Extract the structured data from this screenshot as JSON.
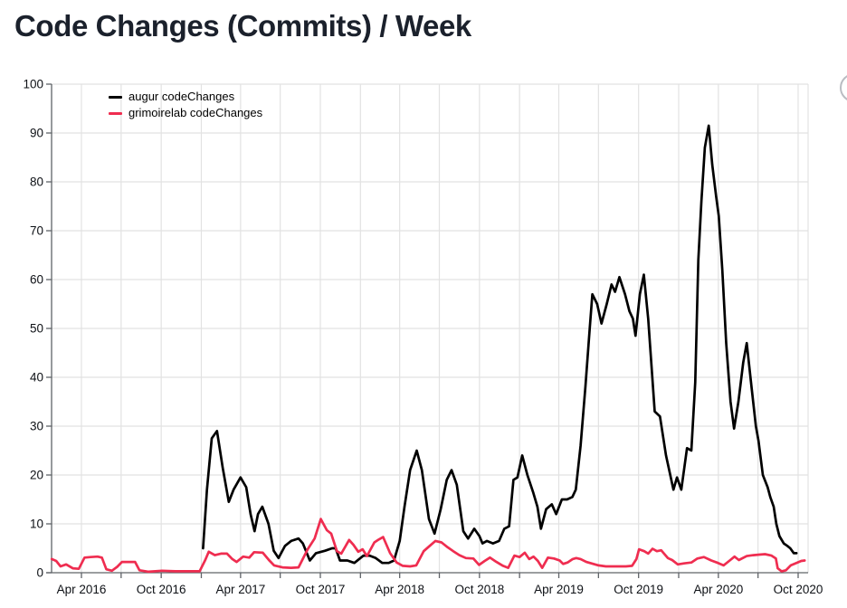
{
  "header": {
    "title": "Code Changes (Commits) / Week"
  },
  "decorations": {
    "top_right_icon": "partial-circle-outline"
  },
  "colors": {
    "background": "#ffffff",
    "gridline": "#e2e2e2",
    "axis": "#5f6368",
    "title_text": "#1b212c",
    "tick_text": "#0e1116"
  },
  "chart_data": {
    "type": "line",
    "title": "Code Changes (Commits) / Week",
    "xlabel": "",
    "ylabel": "",
    "grid": true,
    "legend_position": "top-left-inside",
    "y_axis": {
      "min": 0,
      "max": 100,
      "tick_step": 10,
      "ticks": [
        0,
        10,
        20,
        30,
        40,
        50,
        60,
        70,
        80,
        90,
        100
      ]
    },
    "x_axis": {
      "range_start": "2016-01-23",
      "range_end": "2020-10-24",
      "gridline_interval": "3 months",
      "label_interval": "6 months",
      "gridlines": [
        {
          "date": "2016-04-01",
          "label": "Apr 2016"
        },
        {
          "date": "2016-07-01",
          "label": ""
        },
        {
          "date": "2016-10-01",
          "label": "Oct 2016"
        },
        {
          "date": "2017-01-01",
          "label": ""
        },
        {
          "date": "2017-04-01",
          "label": "Apr 2017"
        },
        {
          "date": "2017-07-01",
          "label": ""
        },
        {
          "date": "2017-10-01",
          "label": "Oct 2017"
        },
        {
          "date": "2018-01-01",
          "label": ""
        },
        {
          "date": "2018-04-01",
          "label": "Apr 2018"
        },
        {
          "date": "2018-07-01",
          "label": ""
        },
        {
          "date": "2018-10-01",
          "label": "Oct 2018"
        },
        {
          "date": "2019-01-01",
          "label": ""
        },
        {
          "date": "2019-04-01",
          "label": "Apr 2019"
        },
        {
          "date": "2019-07-01",
          "label": ""
        },
        {
          "date": "2019-10-01",
          "label": "Oct 2019"
        },
        {
          "date": "2020-01-01",
          "label": ""
        },
        {
          "date": "2020-04-01",
          "label": "Apr 2020"
        },
        {
          "date": "2020-07-01",
          "label": ""
        },
        {
          "date": "2020-10-01",
          "label": "Oct 2020"
        }
      ]
    },
    "series": [
      {
        "name": "augur codeChanges",
        "color": "#000000",
        "points": [
          [
            "2017-01-05",
            5
          ],
          [
            "2017-01-14",
            17
          ],
          [
            "2017-01-25",
            27.5
          ],
          [
            "2017-02-06",
            29
          ],
          [
            "2017-02-19",
            21.5
          ],
          [
            "2017-03-05",
            14.5
          ],
          [
            "2017-03-16",
            17
          ],
          [
            "2017-04-01",
            19.5
          ],
          [
            "2017-04-14",
            17.5
          ],
          [
            "2017-04-24",
            12
          ],
          [
            "2017-05-03",
            8.5
          ],
          [
            "2017-05-11",
            12
          ],
          [
            "2017-05-21",
            13.5
          ],
          [
            "2017-06-04",
            10
          ],
          [
            "2017-06-16",
            4.5
          ],
          [
            "2017-06-27",
            3
          ],
          [
            "2017-07-12",
            5.5
          ],
          [
            "2017-07-26",
            6.5
          ],
          [
            "2017-08-12",
            7
          ],
          [
            "2017-08-22",
            6
          ],
          [
            "2017-09-07",
            2.5
          ],
          [
            "2017-09-21",
            4
          ],
          [
            "2017-10-12",
            4.5
          ],
          [
            "2017-10-28",
            5
          ],
          [
            "2017-11-05",
            5
          ],
          [
            "2017-11-15",
            2.5
          ],
          [
            "2017-12-02",
            2.5
          ],
          [
            "2017-12-18",
            2
          ],
          [
            "2018-01-08",
            3.5
          ],
          [
            "2018-01-22",
            3.5
          ],
          [
            "2018-02-05",
            3
          ],
          [
            "2018-02-20",
            2
          ],
          [
            "2018-03-07",
            2
          ],
          [
            "2018-03-19",
            2.5
          ],
          [
            "2018-04-01",
            6.5
          ],
          [
            "2018-04-12",
            13.5
          ],
          [
            "2018-04-25",
            21
          ],
          [
            "2018-05-10",
            25
          ],
          [
            "2018-05-22",
            21
          ],
          [
            "2018-06-07",
            11
          ],
          [
            "2018-06-20",
            8
          ],
          [
            "2018-07-04",
            13
          ],
          [
            "2018-07-18",
            19
          ],
          [
            "2018-07-29",
            21
          ],
          [
            "2018-08-10",
            18
          ],
          [
            "2018-08-25",
            8.5
          ],
          [
            "2018-09-05",
            7
          ],
          [
            "2018-09-19",
            9
          ],
          [
            "2018-10-01",
            7.5
          ],
          [
            "2018-10-08",
            6
          ],
          [
            "2018-10-18",
            6.5
          ],
          [
            "2018-11-01",
            6
          ],
          [
            "2018-11-15",
            6.5
          ],
          [
            "2018-11-27",
            9
          ],
          [
            "2018-12-08",
            9.5
          ],
          [
            "2018-12-18",
            19
          ],
          [
            "2018-12-27",
            19.5
          ],
          [
            "2019-01-07",
            24
          ],
          [
            "2019-01-19",
            20
          ],
          [
            "2019-02-01",
            16.5
          ],
          [
            "2019-02-11",
            13.5
          ],
          [
            "2019-02-19",
            9
          ],
          [
            "2019-03-03",
            13
          ],
          [
            "2019-03-16",
            14
          ],
          [
            "2019-03-26",
            12
          ],
          [
            "2019-04-08",
            15
          ],
          [
            "2019-04-20",
            15
          ],
          [
            "2019-05-02",
            15.5
          ],
          [
            "2019-05-10",
            17
          ],
          [
            "2019-05-21",
            26
          ],
          [
            "2019-06-01",
            38
          ],
          [
            "2019-06-11",
            50
          ],
          [
            "2019-06-17",
            57
          ],
          [
            "2019-06-28",
            55
          ],
          [
            "2019-07-08",
            51
          ],
          [
            "2019-07-20",
            55
          ],
          [
            "2019-07-31",
            59
          ],
          [
            "2019-08-08",
            57.5
          ],
          [
            "2019-08-18",
            60.5
          ],
          [
            "2019-08-31",
            57
          ],
          [
            "2019-09-10",
            53.5
          ],
          [
            "2019-09-18",
            52
          ],
          [
            "2019-09-24",
            48.5
          ],
          [
            "2019-10-04",
            57
          ],
          [
            "2019-10-13",
            61
          ],
          [
            "2019-10-23",
            52
          ],
          [
            "2019-11-07",
            33
          ],
          [
            "2019-11-19",
            32
          ],
          [
            "2019-12-03",
            24
          ],
          [
            "2019-12-20",
            17
          ],
          [
            "2019-12-28",
            19.5
          ],
          [
            "2020-01-07",
            17
          ],
          [
            "2020-01-20",
            25.5
          ],
          [
            "2020-01-30",
            25
          ],
          [
            "2020-02-08",
            39
          ],
          [
            "2020-02-15",
            64
          ],
          [
            "2020-02-22",
            76
          ],
          [
            "2020-03-01",
            87
          ],
          [
            "2020-03-10",
            91.5
          ],
          [
            "2020-03-18",
            83.5
          ],
          [
            "2020-03-27",
            77
          ],
          [
            "2020-04-02",
            73
          ],
          [
            "2020-04-10",
            62
          ],
          [
            "2020-04-19",
            47
          ],
          [
            "2020-04-29",
            35
          ],
          [
            "2020-05-07",
            29.5
          ],
          [
            "2020-05-17",
            35
          ],
          [
            "2020-05-28",
            43
          ],
          [
            "2020-06-05",
            47
          ],
          [
            "2020-06-16",
            38
          ],
          [
            "2020-06-26",
            30
          ],
          [
            "2020-07-02",
            27
          ],
          [
            "2020-07-12",
            20
          ],
          [
            "2020-07-23",
            17.5
          ],
          [
            "2020-07-29",
            15.5
          ],
          [
            "2020-08-06",
            13.5
          ],
          [
            "2020-08-12",
            10
          ],
          [
            "2020-08-19",
            7.5
          ],
          [
            "2020-08-29",
            6
          ],
          [
            "2020-09-06",
            5.5
          ],
          [
            "2020-09-13",
            5
          ],
          [
            "2020-09-21",
            4
          ],
          [
            "2020-09-27",
            4
          ]
        ]
      },
      {
        "name": "grimoirelab codeChanges",
        "color": "#ef2d50",
        "points": [
          [
            "2016-01-24",
            2.8
          ],
          [
            "2016-02-03",
            2.4
          ],
          [
            "2016-02-13",
            1.3
          ],
          [
            "2016-02-26",
            1.7
          ],
          [
            "2016-03-12",
            0.9
          ],
          [
            "2016-03-26",
            0.8
          ],
          [
            "2016-04-08",
            3.1
          ],
          [
            "2016-04-22",
            3.2
          ],
          [
            "2016-05-08",
            3.3
          ],
          [
            "2016-05-18",
            3.1
          ],
          [
            "2016-05-28",
            0.7
          ],
          [
            "2016-06-10",
            0.4
          ],
          [
            "2016-06-22",
            1.2
          ],
          [
            "2016-07-03",
            2.2
          ],
          [
            "2016-07-19",
            2.2
          ],
          [
            "2016-08-02",
            2.2
          ],
          [
            "2016-08-12",
            0.5
          ],
          [
            "2016-09-02",
            0.2
          ],
          [
            "2016-10-03",
            0.4
          ],
          [
            "2016-11-02",
            0.3
          ],
          [
            "2016-12-03",
            0.3
          ],
          [
            "2016-12-28",
            0.3
          ],
          [
            "2017-01-10",
            2.6
          ],
          [
            "2017-01-18",
            4.3
          ],
          [
            "2017-02-01",
            3.6
          ],
          [
            "2017-02-15",
            3.9
          ],
          [
            "2017-03-01",
            3.9
          ],
          [
            "2017-03-13",
            2.8
          ],
          [
            "2017-03-23",
            2.2
          ],
          [
            "2017-04-07",
            3.3
          ],
          [
            "2017-04-21",
            3.1
          ],
          [
            "2017-05-02",
            4.2
          ],
          [
            "2017-05-22",
            4.1
          ],
          [
            "2017-06-05",
            2.6
          ],
          [
            "2017-06-17",
            1.5
          ],
          [
            "2017-07-06",
            1.1
          ],
          [
            "2017-07-26",
            1
          ],
          [
            "2017-08-12",
            1.1
          ],
          [
            "2017-09-02",
            4.8
          ],
          [
            "2017-09-18",
            7
          ],
          [
            "2017-10-02",
            11
          ],
          [
            "2017-10-16",
            8.7
          ],
          [
            "2017-10-26",
            8
          ],
          [
            "2017-11-08",
            4.4
          ],
          [
            "2017-11-18",
            3.9
          ],
          [
            "2017-12-06",
            6.7
          ],
          [
            "2017-12-16",
            5.7
          ],
          [
            "2017-12-27",
            4.3
          ],
          [
            "2018-01-06",
            4.8
          ],
          [
            "2018-01-16",
            3.4
          ],
          [
            "2018-02-02",
            6.2
          ],
          [
            "2018-02-12",
            6.8
          ],
          [
            "2018-02-22",
            7.3
          ],
          [
            "2018-03-10",
            4
          ],
          [
            "2018-03-25",
            2.1
          ],
          [
            "2018-04-08",
            1.4
          ],
          [
            "2018-04-25",
            1.3
          ],
          [
            "2018-05-09",
            1.5
          ],
          [
            "2018-05-26",
            4.4
          ],
          [
            "2018-06-09",
            5.5
          ],
          [
            "2018-06-22",
            6.5
          ],
          [
            "2018-07-06",
            6.2
          ],
          [
            "2018-07-20",
            5.2
          ],
          [
            "2018-08-02",
            4.4
          ],
          [
            "2018-08-16",
            3.6
          ],
          [
            "2018-08-31",
            3
          ],
          [
            "2018-09-17",
            2.9
          ],
          [
            "2018-09-30",
            1.6
          ],
          [
            "2018-10-13",
            2.4
          ],
          [
            "2018-10-25",
            3.1
          ],
          [
            "2018-11-09",
            2.2
          ],
          [
            "2018-11-24",
            1.4
          ],
          [
            "2018-12-06",
            1
          ],
          [
            "2018-12-20",
            3.5
          ],
          [
            "2019-01-01",
            3.2
          ],
          [
            "2019-01-13",
            4.1
          ],
          [
            "2019-01-23",
            2.8
          ],
          [
            "2019-02-02",
            3.3
          ],
          [
            "2019-02-12",
            2.4
          ],
          [
            "2019-02-22",
            1
          ],
          [
            "2019-03-07",
            3.1
          ],
          [
            "2019-03-21",
            2.9
          ],
          [
            "2019-04-03",
            2.5
          ],
          [
            "2019-04-11",
            1.8
          ],
          [
            "2019-04-21",
            2.1
          ],
          [
            "2019-05-03",
            2.8
          ],
          [
            "2019-05-11",
            3
          ],
          [
            "2019-05-21",
            2.8
          ],
          [
            "2019-06-03",
            2.2
          ],
          [
            "2019-06-15",
            1.9
          ],
          [
            "2019-07-01",
            1.5
          ],
          [
            "2019-07-18",
            1.3
          ],
          [
            "2019-08-12",
            1.3
          ],
          [
            "2019-09-02",
            1.3
          ],
          [
            "2019-09-16",
            1.4
          ],
          [
            "2019-09-26",
            2.8
          ],
          [
            "2019-10-02",
            4.8
          ],
          [
            "2019-10-14",
            4.4
          ],
          [
            "2019-10-23",
            3.9
          ],
          [
            "2019-11-02",
            4.9
          ],
          [
            "2019-11-12",
            4.4
          ],
          [
            "2019-11-22",
            4.6
          ],
          [
            "2019-12-07",
            3
          ],
          [
            "2019-12-17",
            2.6
          ],
          [
            "2019-12-30",
            1.7
          ],
          [
            "2020-01-13",
            1.9
          ],
          [
            "2020-01-30",
            2.1
          ],
          [
            "2020-02-13",
            2.9
          ],
          [
            "2020-02-28",
            3.2
          ],
          [
            "2020-03-16",
            2.5
          ],
          [
            "2020-03-31",
            2
          ],
          [
            "2020-04-13",
            1.5
          ],
          [
            "2020-04-27",
            2.5
          ],
          [
            "2020-05-08",
            3.3
          ],
          [
            "2020-05-18",
            2.6
          ],
          [
            "2020-06-05",
            3.4
          ],
          [
            "2020-06-20",
            3.6
          ],
          [
            "2020-07-04",
            3.7
          ],
          [
            "2020-07-17",
            3.8
          ],
          [
            "2020-08-01",
            3.5
          ],
          [
            "2020-08-11",
            2.9
          ],
          [
            "2020-08-15",
            0.9
          ],
          [
            "2020-08-24",
            0.3
          ],
          [
            "2020-09-03",
            0.5
          ],
          [
            "2020-09-14",
            1.5
          ],
          [
            "2020-09-27",
            2
          ],
          [
            "2020-10-08",
            2.4
          ],
          [
            "2020-10-16",
            2.5
          ]
        ]
      }
    ]
  }
}
